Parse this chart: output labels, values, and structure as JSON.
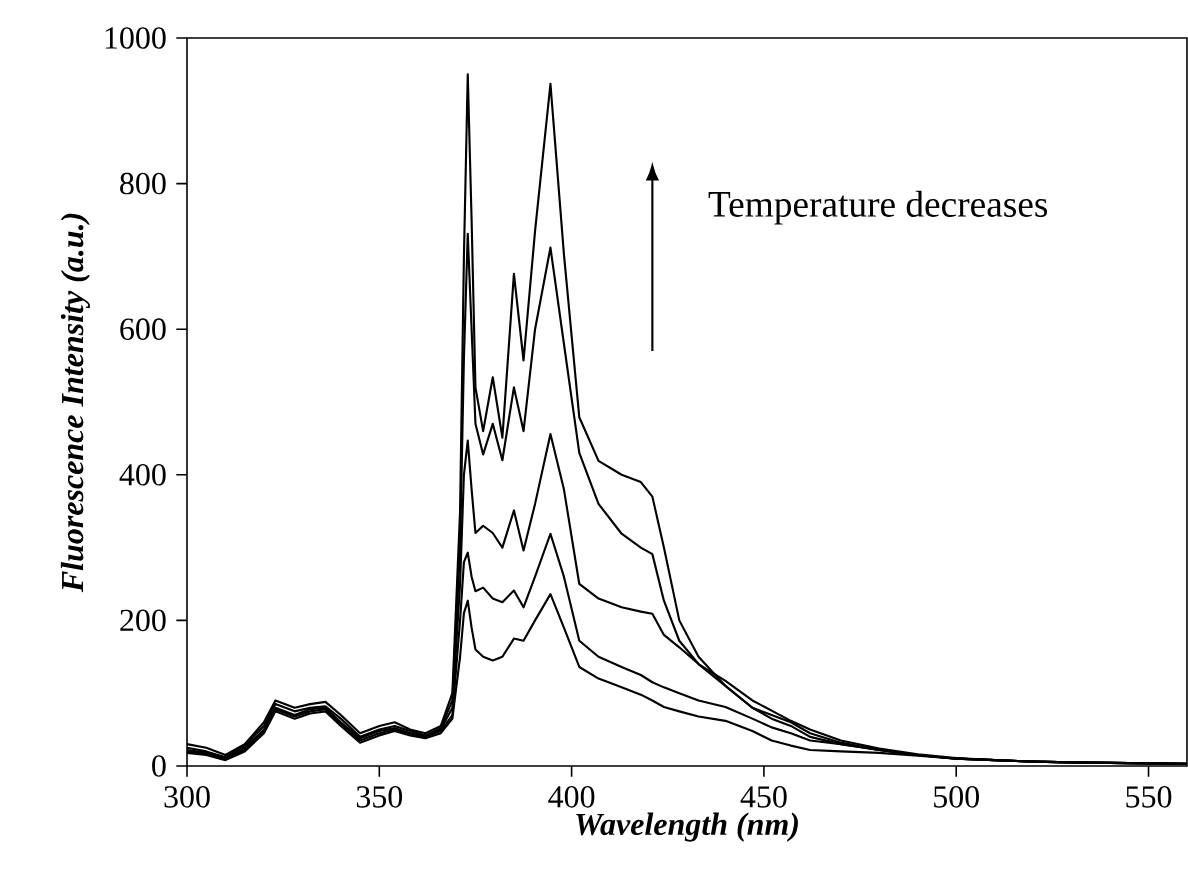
{
  "chart_data": {
    "type": "line",
    "xlabel": "Wavelength (nm)",
    "ylabel": "Fluorescence Intensity (a.u.)",
    "annotations": [
      "Temperature decreases"
    ],
    "xlim": [
      300,
      560
    ],
    "ylim": [
      0,
      1000
    ],
    "xticks": [
      300,
      350,
      400,
      450,
      500,
      550
    ],
    "yticks": [
      0,
      200,
      400,
      600,
      800,
      1000
    ],
    "grid": false,
    "marker": "none",
    "line_style": "solid",
    "x": [
      300,
      305,
      310,
      315,
      320,
      323,
      328,
      332,
      336,
      340,
      345,
      350,
      354,
      358,
      362,
      366,
      369,
      371,
      372,
      373,
      374,
      375,
      377,
      379.5,
      382,
      385,
      387.5,
      390.5,
      394.5,
      398,
      402,
      407,
      413,
      418,
      421,
      424,
      428,
      433,
      440,
      447,
      452,
      457,
      462,
      470,
      480,
      490,
      500,
      510,
      520,
      530,
      545,
      560
    ],
    "series": [
      {
        "color": "#000000",
        "values": [
          30,
          25,
          15,
          30,
          60,
          90,
          80,
          85,
          88,
          70,
          45,
          55,
          60,
          50,
          45,
          55,
          100,
          350,
          700,
          950,
          750,
          520,
          460,
          534,
          451,
          676,
          557,
          735,
          937,
          703,
          479,
          419,
          400,
          390,
          370,
          300,
          200,
          150,
          110,
          80,
          65,
          55,
          40,
          30,
          22,
          15,
          10,
          8,
          6,
          5,
          4,
          3
        ]
      },
      {
        "color": "#000000",
        "values": [
          25,
          20,
          12,
          28,
          55,
          85,
          75,
          80,
          82,
          65,
          40,
          50,
          55,
          48,
          42,
          52,
          90,
          300,
          560,
          731,
          600,
          470,
          428,
          470,
          420,
          520,
          460,
          600,
          712,
          580,
          430,
          360,
          319,
          300,
          291,
          227,
          172,
          140,
          110,
          80,
          70,
          60,
          45,
          32,
          22,
          15,
          10,
          8,
          6,
          5,
          4,
          3
        ]
      },
      {
        "color": "#000000",
        "values": [
          22,
          18,
          10,
          25,
          50,
          80,
          70,
          78,
          80,
          60,
          38,
          48,
          52,
          45,
          40,
          50,
          80,
          250,
          400,
          447,
          380,
          320,
          330,
          320,
          300,
          351,
          296,
          360,
          456,
          380,
          250,
          230,
          218,
          212,
          209,
          180,
          163,
          140,
          117,
          90,
          76,
          62,
          50,
          35,
          24,
          16,
          11,
          8,
          6,
          5,
          4,
          3
        ]
      },
      {
        "color": "#000000",
        "values": [
          20,
          16,
          10,
          22,
          48,
          78,
          68,
          75,
          78,
          58,
          35,
          45,
          50,
          45,
          40,
          48,
          70,
          200,
          280,
          293,
          260,
          240,
          245,
          230,
          225,
          241,
          218,
          260,
          319,
          260,
          172,
          150,
          136,
          125,
          115,
          108,
          100,
          90,
          81,
          65,
          53,
          45,
          35,
          30,
          22,
          15,
          10,
          8,
          6,
          5,
          4,
          3
        ]
      },
      {
        "color": "#000000",
        "values": [
          18,
          15,
          8,
          20,
          45,
          75,
          65,
          72,
          75,
          55,
          32,
          42,
          48,
          42,
          38,
          45,
          65,
          150,
          210,
          227,
          190,
          160,
          150,
          145,
          150,
          175,
          172,
          200,
          236,
          190,
          136,
          120,
          108,
          98,
          90,
          81,
          75,
          68,
          62,
          48,
          35,
          28,
          22,
          20,
          18,
          14,
          10,
          8,
          6,
          5,
          4,
          3
        ]
      }
    ]
  }
}
